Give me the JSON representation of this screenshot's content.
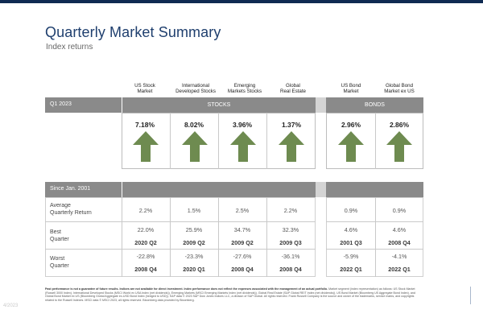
{
  "title": "Quarterly Market Summary",
  "subtitle": "Index returns",
  "columns": [
    {
      "name": "US Stock\nMarket"
    },
    {
      "name": "International\nDeveloped Stocks"
    },
    {
      "name": "Emerging\nMarkets Stocks"
    },
    {
      "name": "Global\nReal Estate"
    },
    {
      "name": "US Bond\nMarket"
    },
    {
      "name": "Global Bond\nMarket ex US"
    }
  ],
  "quarter_band": {
    "label": "Q1 2023",
    "stocks": "STOCKS",
    "bonds": "BONDS"
  },
  "q1_returns": [
    "7.18%",
    "8.02%",
    "3.96%",
    "1.37%",
    "2.96%",
    "2.86%"
  ],
  "arrow_direction": "up",
  "colors": {
    "band": "#8a8a8a",
    "arrow": "#6e8b50",
    "title": "#1f3f6e",
    "top_rule": "#0f2a52"
  },
  "since_band": {
    "label": "Since Jan. 2001"
  },
  "rows": {
    "average": {
      "label": "Average\nQuarterly Return",
      "values": [
        "2.2%",
        "1.5%",
        "2.5%",
        "2.2%",
        "0.9%",
        "0.9%"
      ]
    },
    "best": {
      "label": "Best\nQuarter",
      "values": [
        "22.0%",
        "25.9%",
        "34.7%",
        "32.3%",
        "4.6%",
        "4.6%"
      ],
      "quarters": [
        "2020 Q2",
        "2009 Q2",
        "2009 Q2",
        "2009 Q3",
        "2001 Q3",
        "2008 Q4"
      ]
    },
    "worst": {
      "label": "Worst\nQuarter",
      "values": [
        "-22.8%",
        "-23.3%",
        "-27.6%",
        "-36.1%",
        "-5.9%",
        "-4.1%"
      ],
      "quarters": [
        "2008 Q4",
        "2020 Q1",
        "2008 Q4",
        "2008 Q4",
        "2022 Q1",
        "2022 Q1"
      ]
    }
  },
  "disclaimer_bold": "Past performance is not a guarantee of future results. Indices are not available for direct investment. Index performance does not reflect the expenses associated with the management of an actual portfolio.",
  "disclaimer_text": "Market segment (index representation) as follows: US Stock Market (Russell 3000 Index), International Developed Stocks (MSCI World ex USA Index (net dividends)), Emerging Markets (MSCI Emerging Markets Index (net dividends)), Global Real Estate (S&P Global REIT Index (net dividends)), US Bond Market (Bloomberg US Aggregate Bond Index), and Global Bond Market ex US (Bloomberg Global Aggregate ex-USD Bond Index (hedged to USD)). S&P data © 2023 S&P Dow Jones Indices LLC, a division of S&P Global. All rights reserved. Frank Russell Company is the source and owner of the trademarks, service marks, and copyrights related to the Russell Indexes. MSCI data © MSCI 2023, all rights reserved. Bloomberg data provided by Bloomberg.",
  "slide_number": "4/2023"
}
